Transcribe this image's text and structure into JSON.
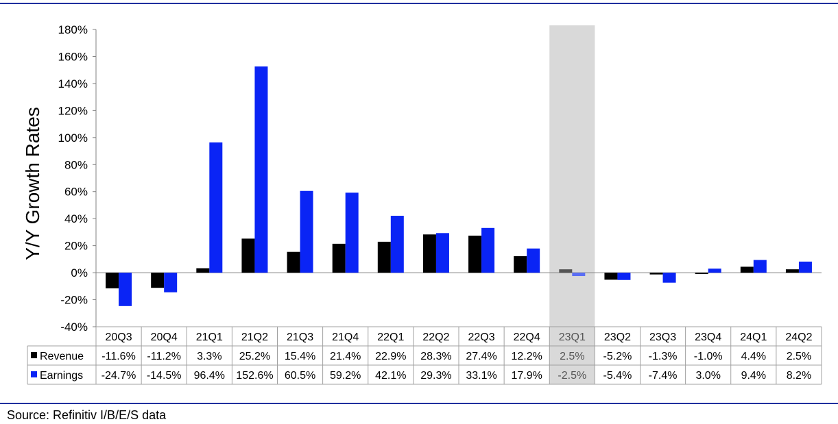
{
  "source_note": "Source: Refinitiv I/B/E/S data",
  "chart_data": {
    "type": "bar",
    "ylabel": "Y/Y Growth Rates",
    "ylim": [
      -40,
      180
    ],
    "ytick_step": 20,
    "ytick_labels": [
      "-40%",
      "-20%",
      "0%",
      "20%",
      "40%",
      "60%",
      "80%",
      "100%",
      "120%",
      "140%",
      "160%",
      "180%"
    ],
    "categories": [
      "20Q3",
      "20Q4",
      "21Q1",
      "21Q2",
      "21Q3",
      "21Q4",
      "22Q1",
      "22Q2",
      "22Q3",
      "22Q4",
      "23Q1",
      "23Q2",
      "23Q3",
      "23Q4",
      "24Q1",
      "24Q2"
    ],
    "highlight_category": "23Q1",
    "series": [
      {
        "name": "Revenue",
        "color": "#000000",
        "values": [
          -11.6,
          -11.2,
          3.3,
          25.2,
          15.4,
          21.4,
          22.9,
          28.3,
          27.4,
          12.2,
          2.5,
          -5.2,
          -1.3,
          -1.0,
          4.4,
          2.5
        ],
        "labels": [
          "-11.6%",
          "-11.2%",
          "3.3%",
          "25.2%",
          "15.4%",
          "21.4%",
          "22.9%",
          "28.3%",
          "27.4%",
          "12.2%",
          "2.5%",
          "-5.2%",
          "-1.3%",
          "-1.0%",
          "4.4%",
          "2.5%"
        ]
      },
      {
        "name": "Earnings",
        "color": "#0a24f5",
        "values": [
          -24.7,
          -14.5,
          96.4,
          152.6,
          60.5,
          59.2,
          42.1,
          29.3,
          33.1,
          17.9,
          -2.5,
          -5.4,
          -7.4,
          3.0,
          9.4,
          8.2
        ],
        "labels": [
          "-24.7%",
          "-14.5%",
          "96.4%",
          "152.6%",
          "60.5%",
          "59.2%",
          "42.1%",
          "29.3%",
          "33.1%",
          "17.9%",
          "-2.5%",
          "-5.4%",
          "-7.4%",
          "3.0%",
          "9.4%",
          "8.2%"
        ]
      }
    ],
    "grid": false,
    "legend": "data-table"
  }
}
